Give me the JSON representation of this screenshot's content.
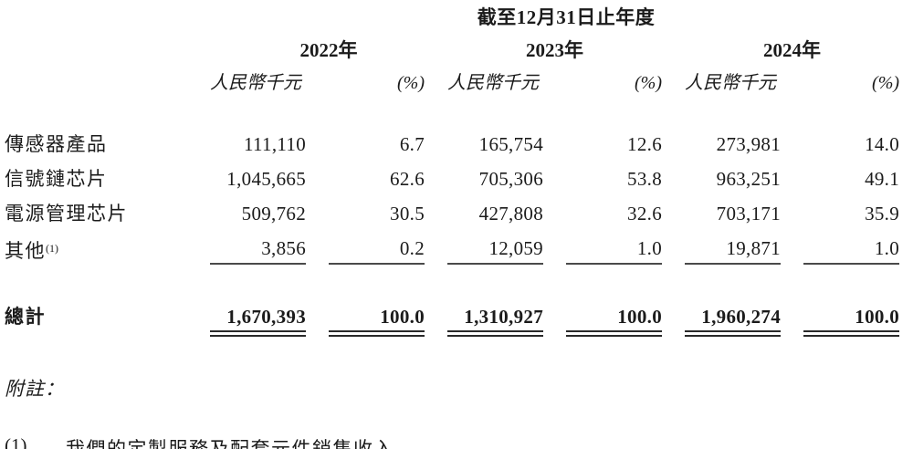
{
  "page": {
    "period_header": "截至12月31日止年度",
    "years": [
      "2022年",
      "2023年",
      "2024年"
    ],
    "columns": {
      "amount_label": "人民幣千元",
      "percent_label": "(%)"
    },
    "rows": [
      {
        "label": "傳感器產品",
        "note_ref": "",
        "values": [
          "111,110",
          "6.7",
          "165,754",
          "12.6",
          "273,981",
          "14.0"
        ]
      },
      {
        "label": "信號鏈芯片",
        "note_ref": "",
        "values": [
          "1,045,665",
          "62.6",
          "705,306",
          "53.8",
          "963,251",
          "49.1"
        ]
      },
      {
        "label": "電源管理芯片",
        "note_ref": "",
        "values": [
          "509,762",
          "30.5",
          "427,808",
          "32.6",
          "703,171",
          "35.9"
        ]
      },
      {
        "label": "其他",
        "note_ref": "(1)",
        "values": [
          "3,856",
          "0.2",
          "12,059",
          "1.0",
          "19,871",
          "1.0"
        ]
      }
    ],
    "total": {
      "label": "總計",
      "values": [
        "1,670,393",
        "100.0",
        "1,310,927",
        "100.0",
        "1,960,274",
        "100.0"
      ]
    },
    "notes": {
      "heading": "附註：",
      "items": [
        {
          "marker": "(1)",
          "text": "我們的定製服務及配套元件銷售收入。"
        }
      ]
    }
  }
}
